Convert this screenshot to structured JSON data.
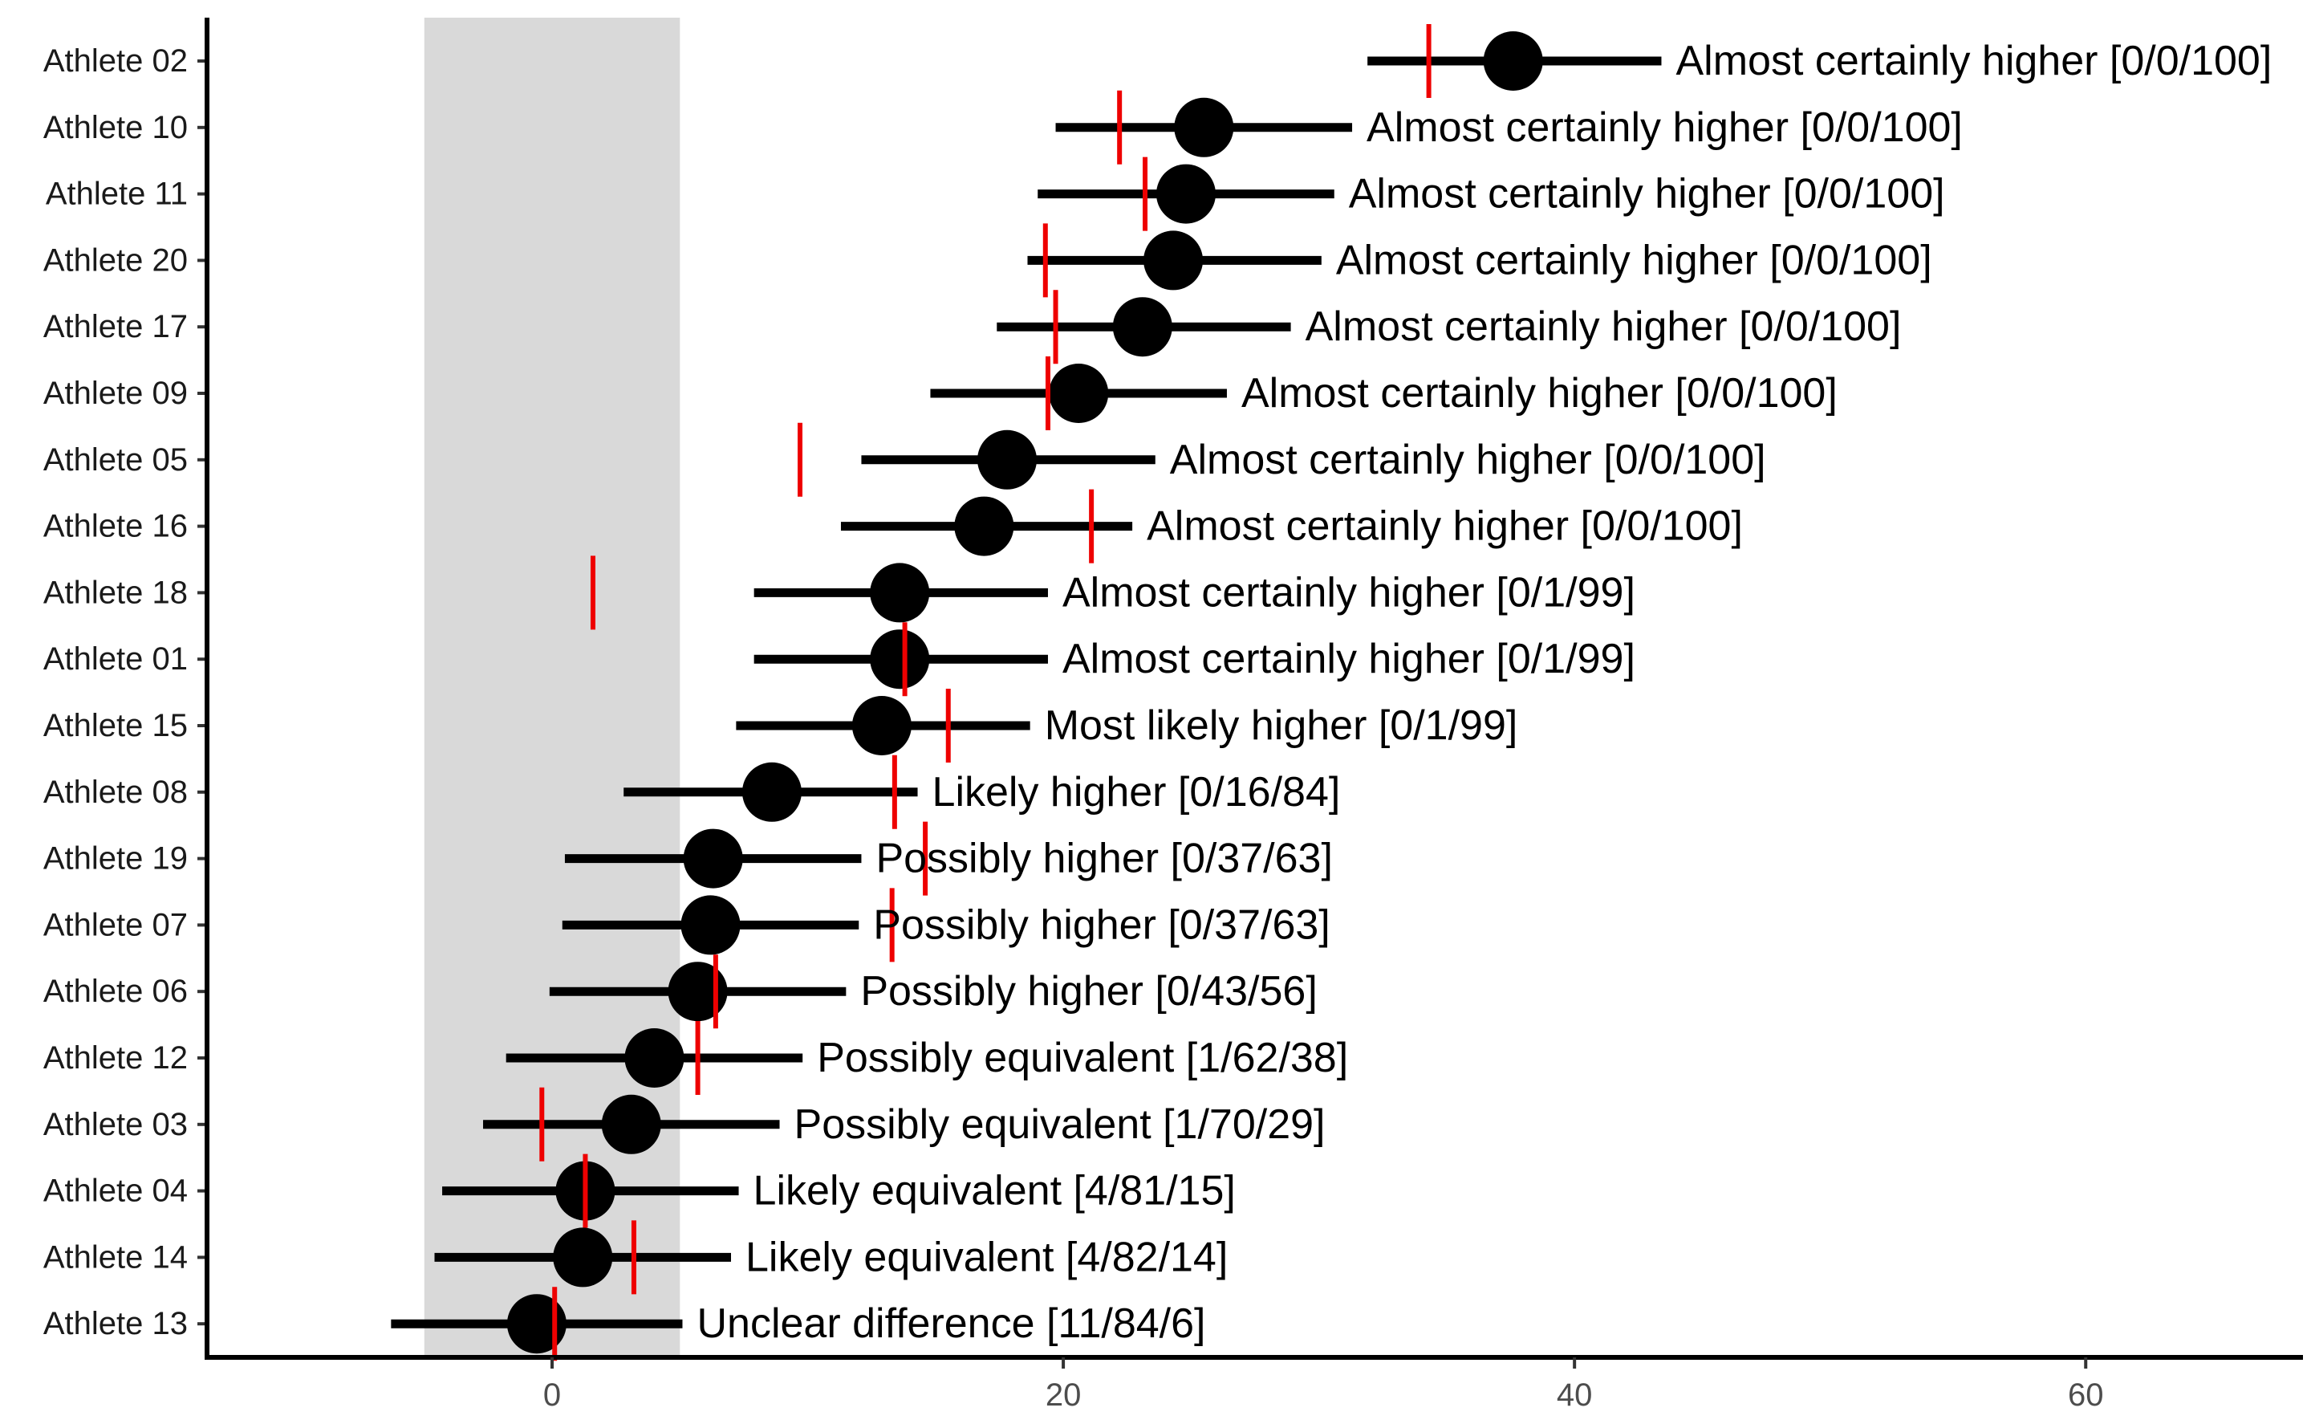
{
  "chart_data": {
    "type": "forest",
    "title": "",
    "xlabel": "",
    "ylabel": "",
    "xlim": [
      -13.5,
      68.5
    ],
    "xticks": [
      0,
      20,
      40,
      60
    ],
    "grid": false,
    "legend": "none",
    "band": {
      "from": -5,
      "to": 5,
      "color": "#d9d9d9"
    },
    "colors": {
      "point": "#000000",
      "interval": "#000000",
      "marker": "#ee0000",
      "axis": "#000000"
    },
    "athletes": [
      {
        "name": "Athlete 02",
        "estimate": 37.6,
        "lower": 31.9,
        "upper": 43.4,
        "marker": 34.3,
        "label": "Almost certainly higher [0/0/100]"
      },
      {
        "name": "Athlete 10",
        "estimate": 25.5,
        "lower": 19.7,
        "upper": 31.3,
        "marker": 22.2,
        "label": "Almost certainly higher [0/0/100]"
      },
      {
        "name": "Athlete 11",
        "estimate": 24.8,
        "lower": 19.0,
        "upper": 30.6,
        "marker": 23.2,
        "label": "Almost certainly higher [0/0/100]"
      },
      {
        "name": "Athlete 20",
        "estimate": 24.3,
        "lower": 18.6,
        "upper": 30.1,
        "marker": 19.3,
        "label": "Almost certainly higher [0/0/100]"
      },
      {
        "name": "Athlete 17",
        "estimate": 23.1,
        "lower": 17.4,
        "upper": 28.9,
        "marker": 19.7,
        "label": "Almost certainly higher [0/0/100]"
      },
      {
        "name": "Athlete 09",
        "estimate": 20.6,
        "lower": 14.8,
        "upper": 26.4,
        "marker": 19.4,
        "label": "Almost certainly higher [0/0/100]"
      },
      {
        "name": "Athlete 05",
        "estimate": 17.8,
        "lower": 12.1,
        "upper": 23.6,
        "marker": 9.7,
        "label": "Almost certainly higher [0/0/100]"
      },
      {
        "name": "Athlete 16",
        "estimate": 16.9,
        "lower": 11.3,
        "upper": 22.7,
        "marker": 21.1,
        "label": "Almost certainly higher [0/0/100]"
      },
      {
        "name": "Athlete 18",
        "estimate": 13.6,
        "lower": 7.9,
        "upper": 19.4,
        "marker": 1.6,
        "label": "Almost certainly higher [0/1/99]"
      },
      {
        "name": "Athlete 01",
        "estimate": 13.6,
        "lower": 7.9,
        "upper": 19.4,
        "marker": 13.8,
        "label": "Almost certainly higher [0/1/99]"
      },
      {
        "name": "Athlete 15",
        "estimate": 12.9,
        "lower": 7.2,
        "upper": 18.7,
        "marker": 15.5,
        "label": "Most likely higher [0/1/99]"
      },
      {
        "name": "Athlete 08",
        "estimate": 8.6,
        "lower": 2.8,
        "upper": 14.3,
        "marker": 13.4,
        "label": "Likely higher [0/16/84]"
      },
      {
        "name": "Athlete 19",
        "estimate": 6.3,
        "lower": 0.5,
        "upper": 12.1,
        "marker": 14.6,
        "label": "Possibly higher [0/37/63]"
      },
      {
        "name": "Athlete 07",
        "estimate": 6.2,
        "lower": 0.4,
        "upper": 12.0,
        "marker": 13.3,
        "label": "Possibly higher [0/37/63]"
      },
      {
        "name": "Athlete 06",
        "estimate": 5.7,
        "lower": -0.1,
        "upper": 11.5,
        "marker": 6.4,
        "label": "Possibly higher [0/43/56]"
      },
      {
        "name": "Athlete 12",
        "estimate": 4.0,
        "lower": -1.8,
        "upper": 9.8,
        "marker": 5.7,
        "label": "Possibly equivalent [1/62/38]"
      },
      {
        "name": "Athlete 03",
        "estimate": 3.1,
        "lower": -2.7,
        "upper": 8.9,
        "marker": -0.4,
        "label": "Possibly equivalent [1/70/29]"
      },
      {
        "name": "Athlete 04",
        "estimate": 1.3,
        "lower": -4.3,
        "upper": 7.3,
        "marker": 1.3,
        "label": "Likely equivalent [4/81/15]"
      },
      {
        "name": "Athlete 14",
        "estimate": 1.2,
        "lower": -4.6,
        "upper": 7.0,
        "marker": 3.2,
        "label": "Likely equivalent [4/82/14]"
      },
      {
        "name": "Athlete 13",
        "estimate": -0.6,
        "lower": -6.3,
        "upper": 5.1,
        "marker": 0.1,
        "label": "Unclear difference [11/84/6]"
      }
    ]
  }
}
